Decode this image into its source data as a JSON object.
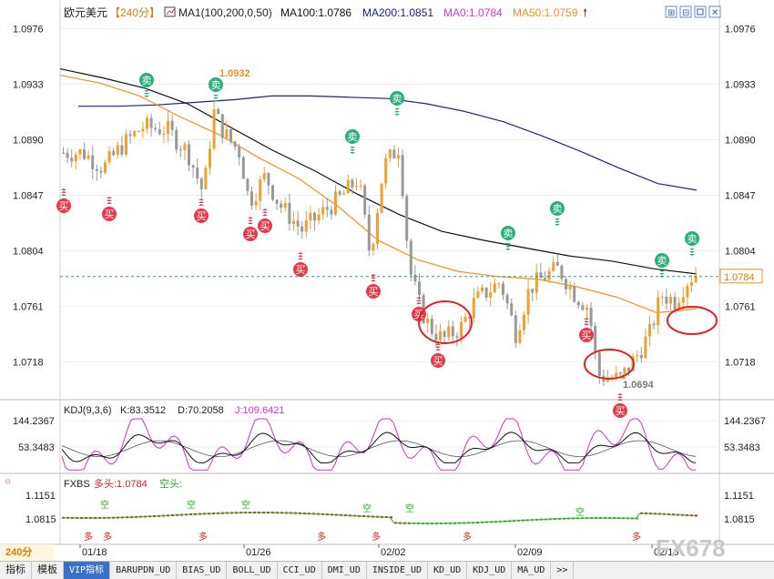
{
  "header": {
    "symbol": "欧元美元",
    "timeframe_tag": "【240分】",
    "ma_label": "MA1(100,200,0,50)",
    "ma100": "MA100:1.0786",
    "ma200": "MA200:1.0851",
    "ma0": "MA0:1.0784",
    "ma50": "MA50:1.0759"
  },
  "kdj": {
    "label": "KDJ(9,3,6)",
    "k": "K:83.3512",
    "d": "D:70.2058",
    "j": "J:109.6421",
    "ticks": [
      "144.2367",
      "53.3483"
    ]
  },
  "fxbs": {
    "label": "FXBS",
    "long": "多头:1.0784",
    "short": "空头:",
    "ticks": [
      "1.1151",
      "1.0815"
    ]
  },
  "price_axis_ticks": [
    "1.0976",
    "1.0933",
    "1.0890",
    "1.0847",
    "1.0804",
    "1.0761",
    "1.0718"
  ],
  "current_price": "1.0784",
  "high_label": "1.0932",
  "low_label": "1.0694",
  "date_labels": [
    "01/18",
    "01/26",
    "02/02",
    "02/09",
    "02/16"
  ],
  "timeframe_corner": "240分",
  "watermark": "FX678",
  "signals": {
    "sell": "卖",
    "buy": "买",
    "long": "多",
    "empty": "空"
  },
  "tabs": [
    "指标",
    "模板",
    "VIP指标",
    "BARUPDN_UD",
    "BIAS_UD",
    "BOLL_UD",
    "CCI_UD",
    "DMI_UD",
    "INSIDE_UD",
    "KD_UD",
    "KDJ_UD",
    "MA_UD",
    ">>"
  ],
  "colors": {
    "up": "#f0a030",
    "down": "#999999",
    "ma100": "#111111",
    "ma200": "#1a237e",
    "ma50": "#f09020",
    "sell": "#28b07a",
    "buy": "#e8384a",
    "circle": "#e02020",
    "k": "#111111",
    "d": "#111111",
    "j": "#cc33cc"
  },
  "chart_data": [
    {
      "type": "candlestick",
      "title": "欧元美元 240分",
      "ylim": [
        1.069,
        1.098
      ],
      "x_ticks": [
        "01/18",
        "01/26",
        "02/02",
        "02/09",
        "02/16"
      ],
      "series": [
        {
          "name": "MA100",
          "last": 1.0786
        },
        {
          "name": "MA200",
          "last": 1.0851
        },
        {
          "name": "MA0",
          "last": 1.0784
        },
        {
          "name": "MA50",
          "last": 1.0759
        }
      ],
      "ma200_path": [
        1.0916,
        1.0916,
        1.0917,
        1.0919,
        1.0921,
        1.0924,
        1.0924,
        1.0923,
        1.0922,
        1.0918,
        1.0912,
        1.0904,
        1.0893,
        1.0881,
        1.0868,
        1.0856,
        1.0851
      ],
      "ma100_path": [
        1.0945,
        1.0938,
        1.093,
        1.0918,
        1.09,
        1.0882,
        1.0866,
        1.0848,
        1.0832,
        1.0819,
        1.0812,
        1.0806,
        1.08,
        1.0796,
        1.079,
        1.0786
      ],
      "ma50_path": [
        1.094,
        1.0934,
        1.0924,
        1.0908,
        1.0894,
        1.0876,
        1.086,
        1.0838,
        1.0812,
        1.0797,
        1.0788,
        1.0784,
        1.0782,
        1.0776,
        1.0768,
        1.0756,
        1.0759
      ],
      "annotations": [
        {
          "text": "1.0932",
          "kind": "high"
        },
        {
          "text": "1.0694",
          "kind": "low"
        }
      ]
    },
    {
      "type": "line",
      "title": "KDJ(9,3,6)",
      "series": [
        {
          "name": "K",
          "last": 83.3512
        },
        {
          "name": "D",
          "last": 70.2058
        },
        {
          "name": "J",
          "last": 109.6421
        }
      ],
      "y_ticks": [
        144.2367,
        53.3483
      ]
    },
    {
      "type": "line",
      "title": "FXBS",
      "series": [
        {
          "name": "多头",
          "last": 1.0784
        }
      ],
      "y_ticks": [
        1.1151,
        1.0815
      ]
    }
  ]
}
